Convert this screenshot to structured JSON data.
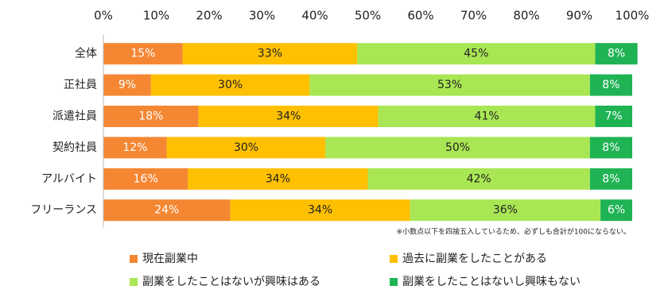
{
  "chart_data": {
    "type": "stacked-barh",
    "categories": [
      "全体",
      "正社員",
      "派遣社員",
      "契約社員",
      "アルバイト",
      "フリーランス"
    ],
    "series": [
      {
        "name": "現在副業中",
        "color": "#f58733",
        "values": [
          15,
          9,
          18,
          12,
          16,
          24
        ],
        "value_labels": [
          "15%",
          "9%",
          "18%",
          "12%",
          "16%",
          "24%"
        ]
      },
      {
        "name": "過去に副業をしたことがある",
        "color": "#ffc000",
        "values": [
          33,
          30,
          34,
          30,
          34,
          34
        ],
        "value_labels": [
          "33%",
          "30%",
          "34%",
          "30%",
          "34%",
          "34%"
        ]
      },
      {
        "name": "副業をしたことはないが興味はある",
        "color": "#a9e653",
        "values": [
          45,
          53,
          41,
          50,
          42,
          36
        ],
        "value_labels": [
          "45%",
          "53%",
          "41%",
          "50%",
          "42%",
          "36%"
        ]
      },
      {
        "name": "副業をしたことはないし興味もない",
        "color": "#1fb354",
        "values": [
          8,
          8,
          7,
          8,
          8,
          6
        ],
        "value_labels": [
          "8%",
          "8%",
          "7%",
          "8%",
          "8%",
          "6%"
        ]
      }
    ],
    "xlim": [
      0,
      100
    ],
    "xticks": [
      {
        "value": 0,
        "label": "0%"
      },
      {
        "value": 10,
        "label": "10%"
      },
      {
        "value": 20,
        "label": "20%"
      },
      {
        "value": 30,
        "label": "30%"
      },
      {
        "value": 40,
        "label": "40%"
      },
      {
        "value": 50,
        "label": "50%"
      },
      {
        "value": 60,
        "label": "60%"
      },
      {
        "value": 70,
        "label": "70%"
      },
      {
        "value": 80,
        "label": "80%"
      },
      {
        "value": 90,
        "label": "90%"
      },
      {
        "value": 100,
        "label": "100%"
      }
    ],
    "annotation": "※小数点以下を四捨五入しているため、必ずしも合計が100にならない。",
    "grid": false
  }
}
